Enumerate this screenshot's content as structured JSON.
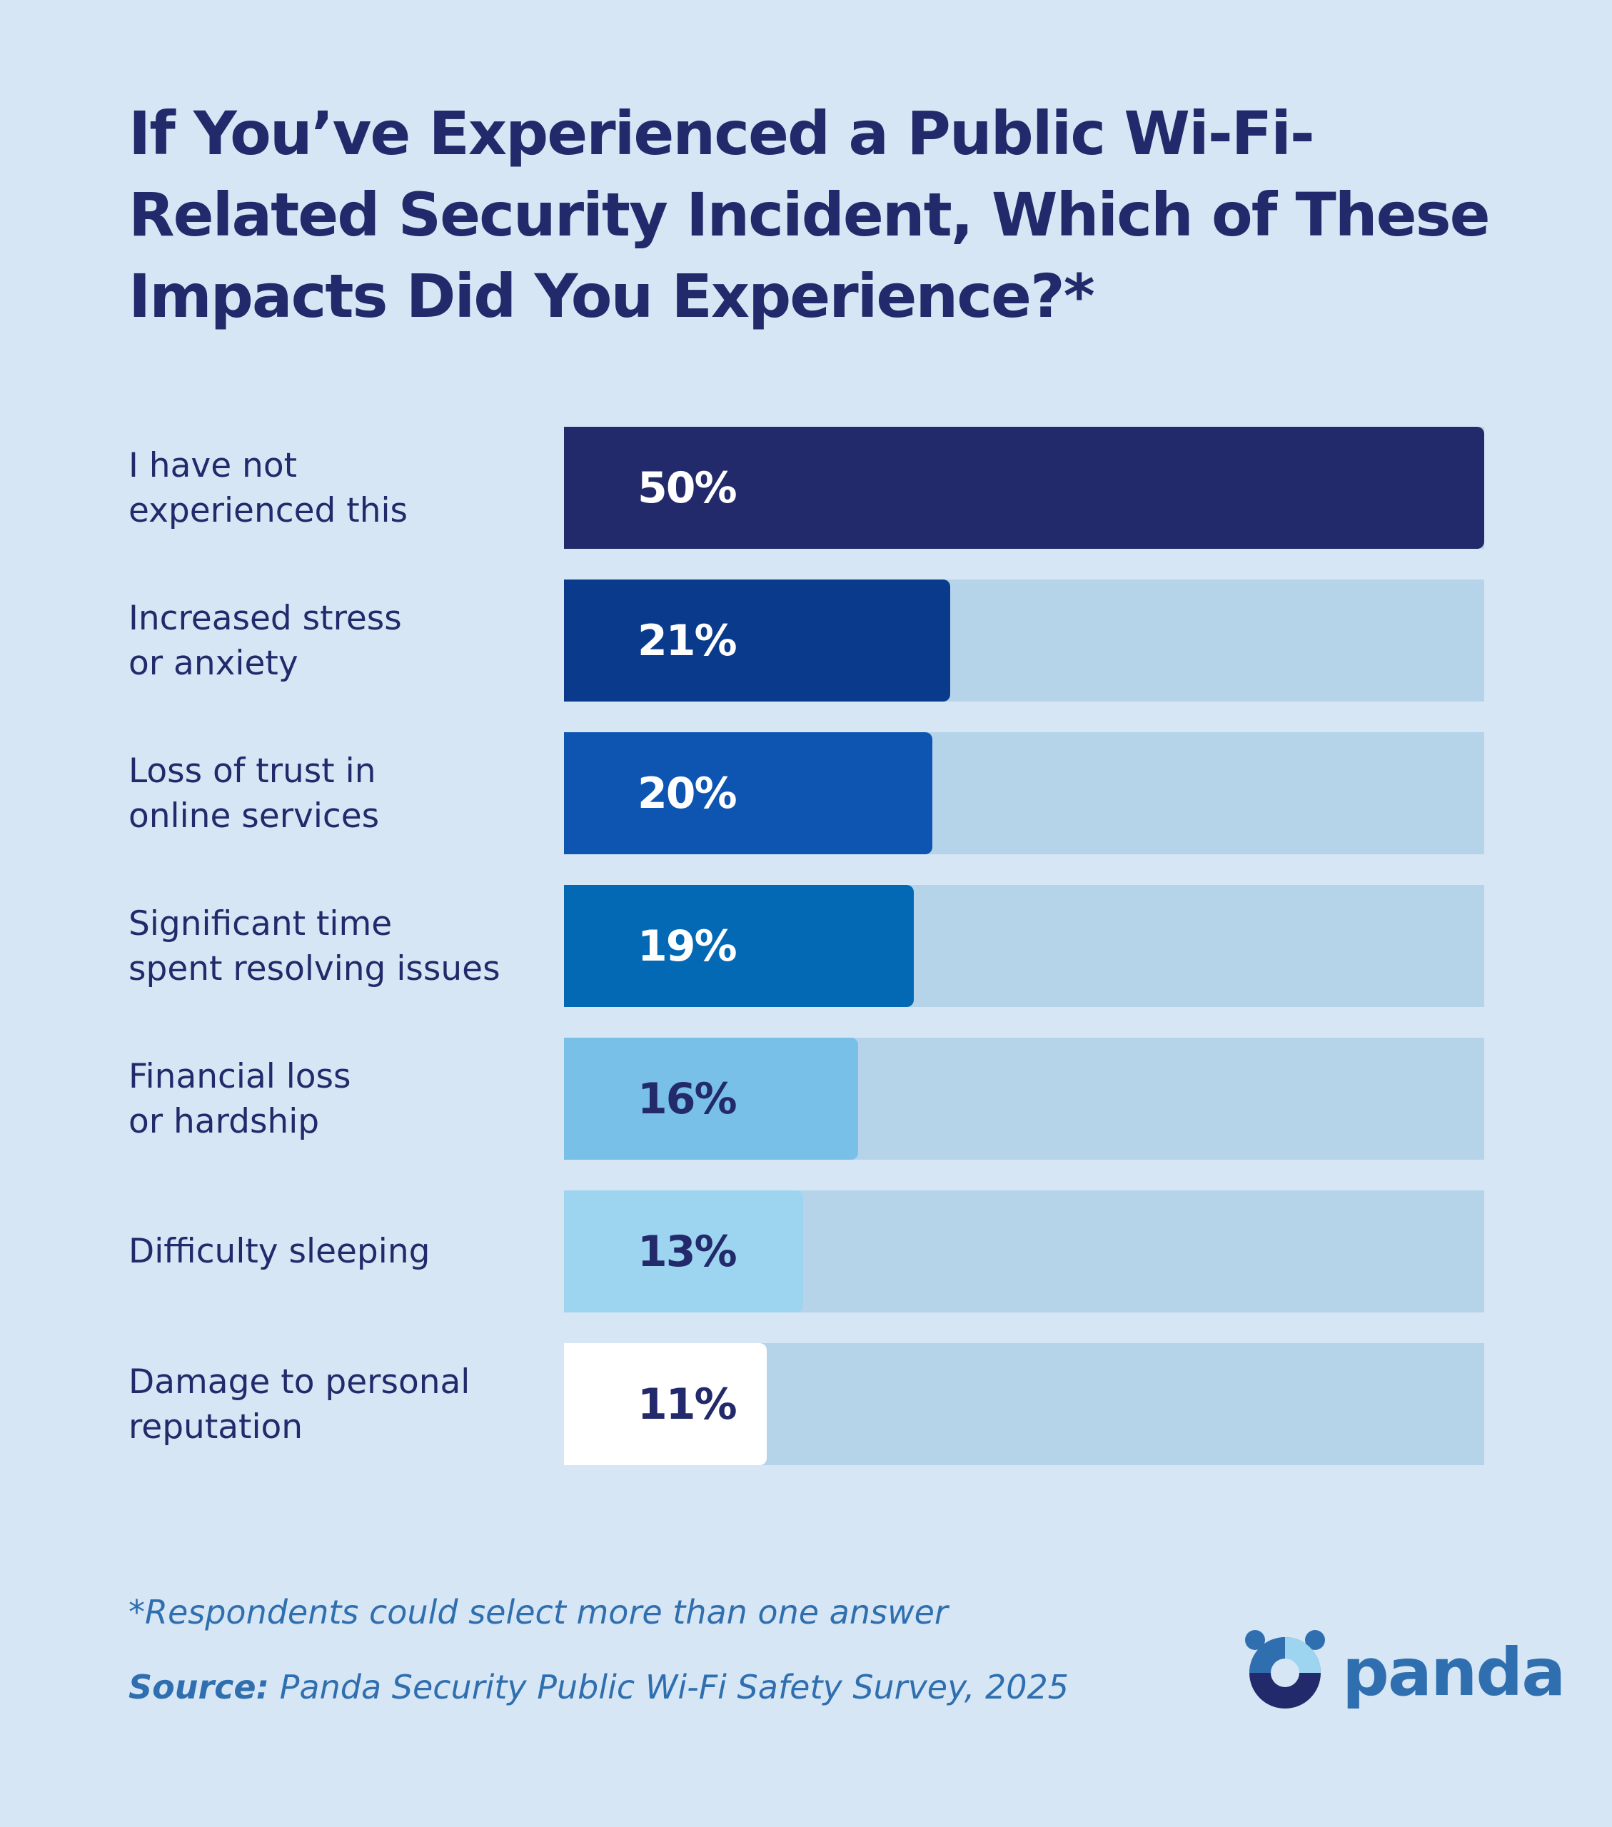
{
  "chart_data": {
    "type": "bar",
    "orientation": "horizontal",
    "title": "If You’ve Experienced a Public Wi-Fi-Related Security Incident, Which of These Impacts Did You Experience?*",
    "categories": [
      "I have not\nexperienced this",
      "Increased stress\nor anxiety",
      "Loss of trust in\nonline services",
      "Significant time\nspent resolving issues",
      "Financial loss\nor hardship",
      "Difficulty sleeping",
      "Damage to personal\nreputation"
    ],
    "values": [
      50,
      21,
      20,
      19,
      16,
      13,
      11
    ],
    "value_labels": [
      "50%",
      "21%",
      "20%",
      "19%",
      "16%",
      "13%",
      "11%"
    ],
    "colors": [
      "#232a6b",
      "#0a3a8c",
      "#0d55b0",
      "#0369b5",
      "#79c0e8",
      "#9dd4f0",
      "#ffffff"
    ],
    "label_colors": [
      "#ffffff",
      "#ffffff",
      "#ffffff",
      "#ffffff",
      "#232a6b",
      "#232a6b",
      "#232a6b"
    ],
    "track_color": "#b5d4ea",
    "xlim": [
      0,
      50
    ],
    "footnote": "*Respondents could select more than one answer",
    "source_label": "Source:",
    "source": "Panda Security Public Wi-Fi Safety Survey, 2025",
    "logo": "panda"
  }
}
